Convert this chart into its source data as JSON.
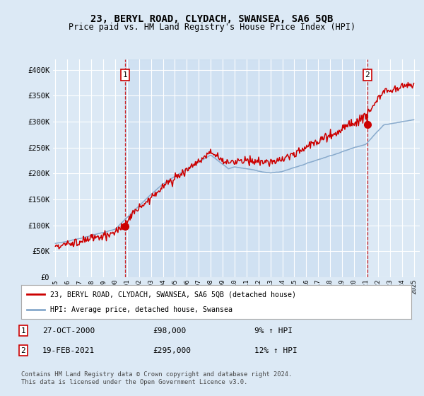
{
  "title": "23, BERYL ROAD, CLYDACH, SWANSEA, SA6 5QB",
  "subtitle": "Price paid vs. HM Land Registry's House Price Index (HPI)",
  "title_fontsize": 10,
  "subtitle_fontsize": 8.5,
  "bg_color": "#dce9f5",
  "plot_bg_color": "#dce9f5",
  "grid_color": "#ffffff",
  "red_line_color": "#cc0000",
  "blue_line_color": "#88aacc",
  "shade_color": "#c8dcf0",
  "marker1_date_x": 2000.82,
  "marker2_date_x": 2021.12,
  "marker1_price": 98000,
  "marker2_price": 295000,
  "sale1_label": "27-OCT-2000",
  "sale1_price": "£98,000",
  "sale1_hpi": "9% ↑ HPI",
  "sale2_label": "19-FEB-2021",
  "sale2_price": "£295,000",
  "sale2_hpi": "12% ↑ HPI",
  "legend_line1": "23, BERYL ROAD, CLYDACH, SWANSEA, SA6 5QB (detached house)",
  "legend_line2": "HPI: Average price, detached house, Swansea",
  "footer": "Contains HM Land Registry data © Crown copyright and database right 2024.\nThis data is licensed under the Open Government Licence v3.0.",
  "ylim": [
    0,
    420000
  ],
  "yticks": [
    0,
    50000,
    100000,
    150000,
    200000,
    250000,
    300000,
    350000,
    400000
  ],
  "ytick_labels": [
    "£0",
    "£50K",
    "£100K",
    "£150K",
    "£200K",
    "£250K",
    "£300K",
    "£350K",
    "£400K"
  ],
  "xlim_left": 1994.8,
  "xlim_right": 2025.5
}
